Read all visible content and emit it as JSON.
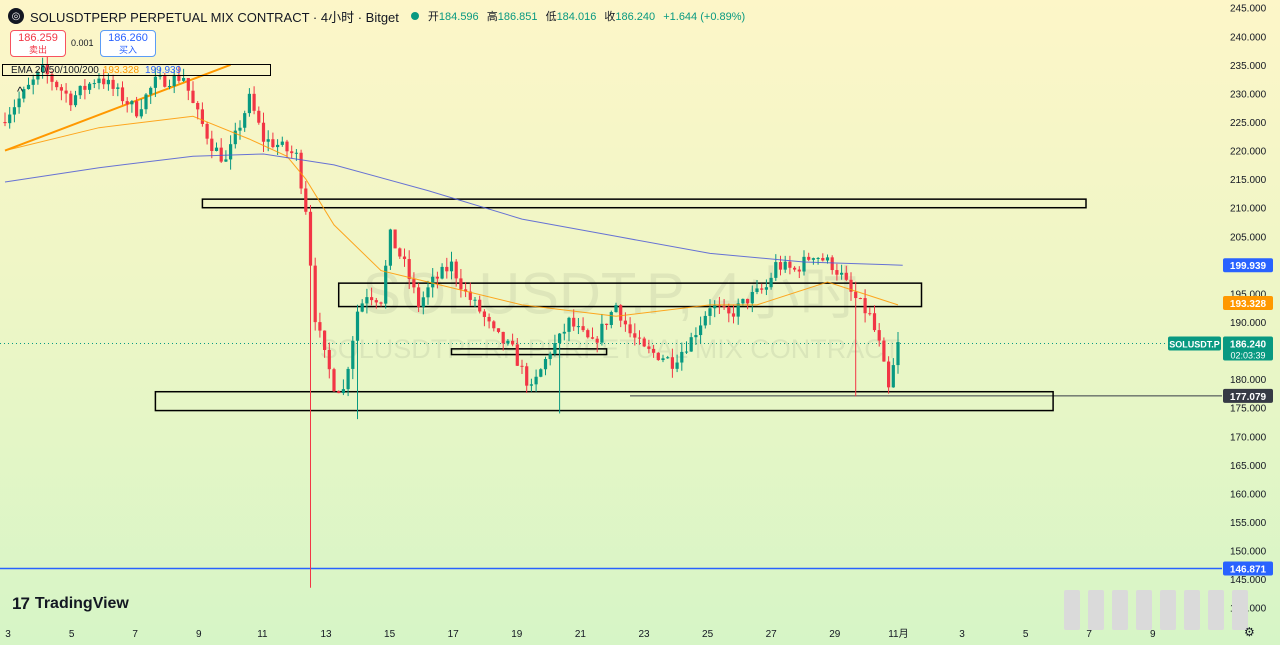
{
  "header": {
    "symbol": "SOLUSDTPERP PERPETUAL MIX CONTRACT · 4小时 · Bitget",
    "open_label": "开",
    "open": "184.596",
    "high_label": "高",
    "high": "186.851",
    "low_label": "低",
    "low": "184.016",
    "close_label": "收",
    "close": "186.240",
    "change": "+1.644 (+0.89%)"
  },
  "quote": {
    "sell_price": "186.259",
    "sell_label": "卖出",
    "spread": "0.001",
    "buy_price": "186.260",
    "buy_label": "买入"
  },
  "ema_legend": {
    "label": "EMA 20/50/100/200",
    "ema_a": "193.328",
    "ema_b": "199.939"
  },
  "watermark": {
    "line1": "SOLUSDT.P, 4小时",
    "line2": "SOLUSDTPERP PERPETUAL MIX CONTRACT"
  },
  "brand": "TradingView",
  "chart_data": {
    "type": "candlestick",
    "title": "SOLUSDTPERP PERPETUAL MIX CONTRACT · 4小时 · Bitget",
    "ylim": [
      137.5,
      246
    ],
    "y_ticks": [
      "140.000",
      "145.000",
      "150.000",
      "155.000",
      "160.000",
      "165.000",
      "170.000",
      "175.000",
      "180.000",
      "185.000",
      "190.000",
      "195.000",
      "200.000",
      "205.000",
      "210.000",
      "215.000",
      "220.000",
      "225.000",
      "230.000",
      "235.000",
      "240.000",
      "245.000"
    ],
    "x_labels": [
      "3",
      "5",
      "7",
      "9",
      "11",
      "13",
      "15",
      "17",
      "19",
      "21",
      "23",
      "25",
      "27",
      "29",
      "11月",
      "3",
      "5",
      "7",
      "9"
    ],
    "ohlc_waypoints": [
      [
        0,
        226
      ],
      [
        8,
        234
      ],
      [
        14,
        229
      ],
      [
        20,
        233
      ],
      [
        28,
        227
      ],
      [
        32,
        232
      ],
      [
        38,
        233
      ],
      [
        40,
        228
      ],
      [
        44,
        221
      ],
      [
        47,
        218
      ],
      [
        52,
        229
      ],
      [
        55,
        222
      ],
      [
        58,
        221
      ],
      [
        62,
        219
      ],
      [
        64,
        210
      ],
      [
        66,
        191
      ],
      [
        68,
        184
      ],
      [
        70,
        179
      ],
      [
        72,
        178
      ],
      [
        75,
        192
      ],
      [
        77,
        195
      ],
      [
        80,
        194
      ],
      [
        82,
        205
      ],
      [
        85,
        200
      ],
      [
        88,
        193
      ],
      [
        91,
        197
      ],
      [
        95,
        200
      ],
      [
        98,
        195
      ],
      [
        101,
        192
      ],
      [
        104,
        188
      ],
      [
        108,
        185
      ],
      [
        112,
        178
      ],
      [
        116,
        185
      ],
      [
        118,
        187
      ],
      [
        120,
        190
      ],
      [
        125,
        186
      ],
      [
        130,
        193
      ],
      [
        133,
        188
      ],
      [
        136,
        185
      ],
      [
        140,
        184
      ],
      [
        142,
        183
      ],
      [
        146,
        187
      ],
      [
        150,
        193
      ],
      [
        154,
        191
      ],
      [
        158,
        194
      ],
      [
        162,
        196
      ],
      [
        164,
        200
      ],
      [
        168,
        199
      ],
      [
        172,
        202
      ],
      [
        176,
        200
      ],
      [
        178,
        198
      ],
      [
        180,
        195
      ],
      [
        184,
        191
      ],
      [
        186,
        186
      ],
      [
        188,
        178
      ],
      [
        190,
        186
      ]
    ],
    "series": [
      {
        "name": "EMA 193.328",
        "color": "#ff9800",
        "last": 193.328,
        "points": [
          [
            0,
            220
          ],
          [
            20,
            224
          ],
          [
            40,
            226
          ],
          [
            52,
            222
          ],
          [
            60,
            219
          ],
          [
            64,
            215
          ],
          [
            70,
            207
          ],
          [
            80,
            199
          ],
          [
            90,
            197
          ],
          [
            110,
            193
          ],
          [
            130,
            191
          ],
          [
            150,
            193
          ],
          [
            160,
            193
          ],
          [
            175,
            197
          ],
          [
            190,
            193
          ]
        ]
      },
      {
        "name": "EMA 199.939",
        "color": "#4d5bd6",
        "last": 199.939,
        "points": [
          [
            0,
            214.5
          ],
          [
            20,
            217
          ],
          [
            40,
            219
          ],
          [
            55,
            219.4
          ],
          [
            70,
            217.5
          ],
          [
            90,
            213
          ],
          [
            110,
            208
          ],
          [
            130,
            205
          ],
          [
            150,
            202
          ],
          [
            170,
            200.5
          ],
          [
            191,
            199.939
          ]
        ]
      }
    ],
    "trendline": {
      "points": [
        [
          0,
          220
        ],
        [
          48,
          235
        ]
      ],
      "color": "#ff9800"
    },
    "zones": [
      {
        "x": [
          42,
          230
        ],
        "y": [
          210,
          211.5
        ]
      },
      {
        "x": [
          71,
          195
        ],
        "y": [
          192.7,
          196.8
        ]
      },
      {
        "x": [
          95,
          128
        ],
        "y": [
          184.3,
          185.3
        ]
      },
      {
        "x": [
          32,
          223
        ],
        "y": [
          174.5,
          177.8
        ]
      }
    ],
    "price_labels": [
      {
        "value": 199.939,
        "text": "199.939",
        "color": "#2962ff"
      },
      {
        "value": 193.328,
        "text": "193.328",
        "color": "#ff9800"
      },
      {
        "value": 186.24,
        "text": "186.240",
        "sub": "02:03:39",
        "tag": "SOLUSDT.P",
        "color": "#089981"
      },
      {
        "value": 177.079,
        "text": "177.079",
        "color": "#363a45"
      },
      {
        "value": 146.871,
        "text": "146.871",
        "color": "#2962ff"
      }
    ],
    "spike_low": 143.5,
    "wick_lows": {
      "75": 173,
      "118": 174,
      "181": 177
    }
  }
}
